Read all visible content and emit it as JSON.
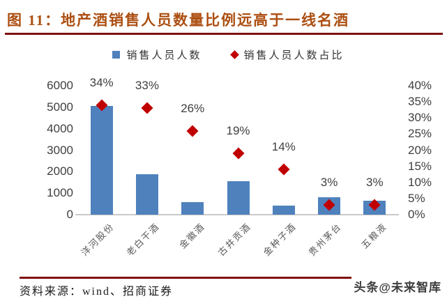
{
  "title": "图 11：地产酒销售人员数量比例远高于一线名酒",
  "legend": [
    {
      "label": "销售人员人数",
      "marker": "square",
      "color": "#4F81BD"
    },
    {
      "label": "销售人员人数占比",
      "marker": "diamond",
      "color": "#C00000"
    }
  ],
  "chart_data": {
    "type": "bar",
    "subtype": "bar-with-scatter-combo",
    "title": "地产酒销售人员数量比例远高于一线名酒",
    "categories": [
      "洋河股份",
      "老白干酒",
      "金徽酒",
      "古井贡酒",
      "金种子酒",
      "贵州茅台",
      "五粮液"
    ],
    "series": [
      {
        "name": "销售人员人数",
        "type": "bar",
        "axis": "left",
        "values": [
          5050,
          1880,
          570,
          1550,
          420,
          820,
          640
        ]
      },
      {
        "name": "销售人员人数占比",
        "type": "scatter",
        "axis": "right",
        "values": [
          34,
          33,
          26,
          19,
          14,
          3,
          3
        ],
        "labels": [
          "34%",
          "33%",
          "26%",
          "19%",
          "14%",
          "3%",
          "3%"
        ]
      }
    ],
    "left_axis": {
      "ticks": [
        0,
        1000,
        2000,
        3000,
        4000,
        5000,
        6000
      ],
      "range": [
        0,
        6000
      ]
    },
    "right_axis": {
      "ticks": [
        "0%",
        "5%",
        "10%",
        "15%",
        "20%",
        "25%",
        "30%",
        "35%",
        "40%"
      ],
      "range": [
        0,
        40
      ]
    },
    "grid": false,
    "legend_position": "top",
    "category_label_rotation_deg": 45
  },
  "footer": {
    "source": "资料来源：wind、招商证券",
    "watermark": "头条@未来智库"
  },
  "colors": {
    "title": "#AC4E10",
    "rule": "#7E1012",
    "bar": "#4F81BD",
    "point": "#C00000",
    "axis_text": "#3F3F3F",
    "category_text": "#595959",
    "baseline": "#C9C9C9"
  }
}
